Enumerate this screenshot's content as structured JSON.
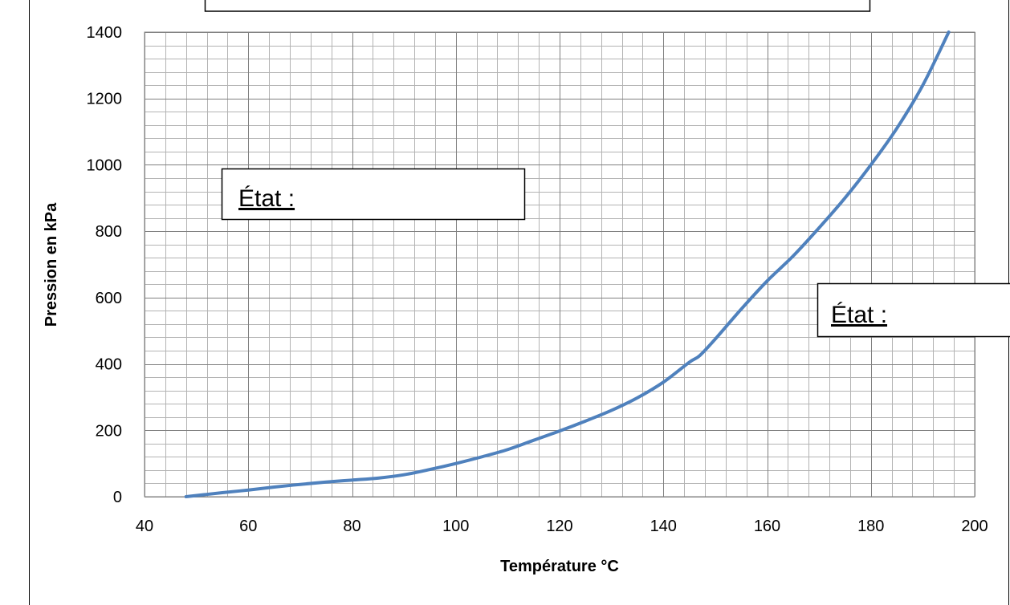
{
  "chart_data": {
    "type": "line",
    "title": "",
    "xlabel": "Température °C",
    "ylabel": "Pression en kPa",
    "xlim": [
      40,
      200
    ],
    "ylim": [
      0,
      1400
    ],
    "x_ticks": [
      40,
      60,
      80,
      100,
      120,
      140,
      160,
      180,
      200
    ],
    "y_ticks": [
      0,
      200,
      400,
      600,
      800,
      1000,
      1200,
      1400
    ],
    "grid": {
      "major": true,
      "minor": true,
      "x_minor_step": 4,
      "y_minor_step": 40
    },
    "legend": "none",
    "series": [
      {
        "color": "#4f81bd",
        "x": [
          48,
          55,
          60,
          65,
          70,
          75,
          80,
          85,
          90,
          95,
          100,
          105,
          110,
          115,
          120,
          125,
          130,
          135,
          140,
          145,
          147,
          150,
          155,
          160,
          165,
          170,
          175,
          180,
          185,
          190,
          195
        ],
        "y": [
          0,
          12,
          20,
          29,
          37,
          44,
          50,
          56,
          66,
          82,
          100,
          120,
          142,
          170,
          198,
          228,
          260,
          298,
          345,
          405,
          425,
          475,
          565,
          650,
          725,
          810,
          900,
          1000,
          1110,
          1240,
          1400
        ]
      }
    ]
  },
  "annotations": [
    {
      "text": "État :"
    },
    {
      "text": "État :"
    }
  ]
}
